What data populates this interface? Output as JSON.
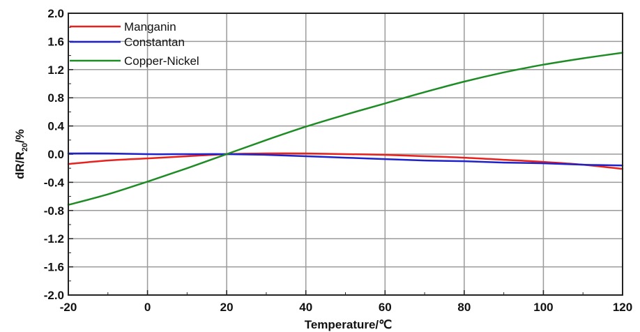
{
  "chart_data": {
    "type": "line",
    "title": "",
    "xlabel": "Temperature/℃",
    "ylabel": "dR/R20/%",
    "xlim": [
      -20,
      120
    ],
    "ylim": [
      -2.0,
      2.0
    ],
    "x_ticks": [
      "-20",
      "0",
      "20",
      "40",
      "60",
      "80",
      "100",
      "120"
    ],
    "y_ticks": [
      "-2.0",
      "-1.6",
      "-1.2",
      "-0.8",
      "-0.4",
      "0.0",
      "0.4",
      "0.8",
      "1.2",
      "1.6",
      "2.0"
    ],
    "grid": true,
    "legend_position": "top-left",
    "x": [
      -20,
      -10,
      0,
      10,
      20,
      30,
      40,
      50,
      60,
      70,
      80,
      90,
      100,
      110,
      120
    ],
    "series": [
      {
        "name": "Manganin",
        "color": "#e8211e",
        "values": [
          -0.14,
          -0.09,
          -0.06,
          -0.03,
          0.0,
          0.01,
          0.01,
          0.0,
          -0.01,
          -0.03,
          -0.05,
          -0.08,
          -0.11,
          -0.15,
          -0.21
        ]
      },
      {
        "name": "Constantan",
        "color": "#1f22c8",
        "values": [
          0.01,
          0.01,
          0.0,
          0.0,
          0.0,
          -0.01,
          -0.03,
          -0.05,
          -0.07,
          -0.09,
          -0.1,
          -0.12,
          -0.13,
          -0.15,
          -0.16
        ]
      },
      {
        "name": "Copper-Nickel",
        "color": "#1e8c24",
        "values": [
          -0.72,
          -0.57,
          -0.39,
          -0.2,
          0.0,
          0.2,
          0.39,
          0.56,
          0.72,
          0.88,
          1.03,
          1.16,
          1.27,
          1.36,
          1.44
        ]
      }
    ]
  }
}
